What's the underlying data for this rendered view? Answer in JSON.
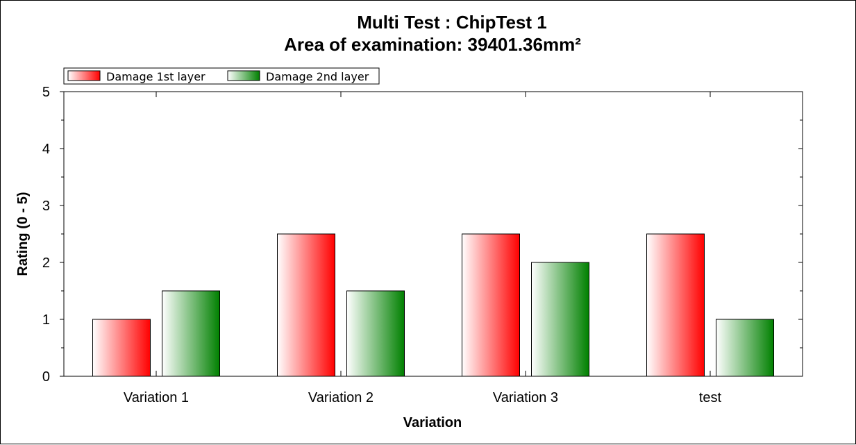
{
  "chart_data": {
    "type": "bar",
    "title": "Multi Test : ChipTest 1",
    "subtitle": "Area of examination: 39401.36mm²",
    "xlabel": "Variation",
    "ylabel": "Rating (0 - 5)",
    "categories": [
      "Variation 1",
      "Variation 2",
      "Variation 3",
      "test"
    ],
    "series": [
      {
        "name": "Damage 1st layer",
        "values": [
          1,
          2.5,
          2.5,
          2.5
        ],
        "color": "#ff0000"
      },
      {
        "name": "Damage 2nd layer",
        "values": [
          1.5,
          1.5,
          2,
          1
        ],
        "color": "#008000"
      }
    ],
    "ylim": [
      0,
      5
    ],
    "yticks": [
      "0",
      "1",
      "2",
      "3",
      "4",
      "5"
    ],
    "grid": false,
    "legend_position": "top-left"
  }
}
